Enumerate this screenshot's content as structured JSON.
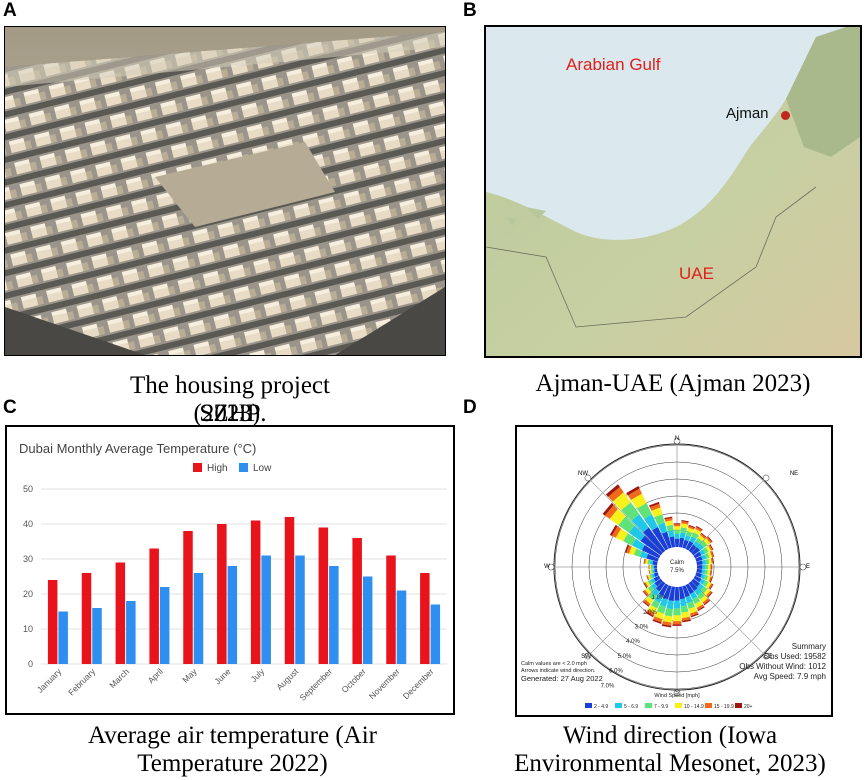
{
  "panels": {
    "a": {
      "letter": "A",
      "caption_line1": "The housing project SZHP",
      "caption_line2": "(2023)."
    },
    "b": {
      "letter": "B",
      "caption": "Ajman-UAE (Ajman 2023)",
      "map_labels": {
        "gulf": "Arabian Gulf",
        "city": "Ajman",
        "country": "UAE"
      }
    },
    "c": {
      "letter": "C",
      "caption_line1": "Average air temperature (Air",
      "caption_line2": "Temperature 2022)"
    },
    "d": {
      "letter": "D",
      "caption_line1": "Wind direction (Iowa",
      "caption_line2": "Environmental Mesonet, 2023)"
    }
  },
  "colors": {
    "high": "#e8131b",
    "low": "#2e8ff0",
    "gulf_label": "#e0201a",
    "city_dot": "#c0281c"
  },
  "chart_data": {
    "type": "bar",
    "title": "Dubai Monthly Average Temperature (°C)",
    "categories": [
      "January",
      "February",
      "March",
      "April",
      "May",
      "June",
      "July",
      "August",
      "September",
      "October",
      "November",
      "December"
    ],
    "series": [
      {
        "name": "High",
        "values": [
          24,
          26,
          29,
          33,
          38,
          40,
          41,
          42,
          39,
          36,
          31,
          26
        ]
      },
      {
        "name": "Low",
        "values": [
          15,
          16,
          18,
          22,
          26,
          28,
          31,
          31,
          28,
          25,
          21,
          17
        ]
      }
    ],
    "yticks": [
      0,
      10,
      20,
      30,
      40,
      50
    ],
    "ylim": [
      0,
      50
    ],
    "xlabel": "",
    "ylabel": "",
    "legend": "top-center"
  },
  "windrose": {
    "directions": {
      "n": "N",
      "ne": "NE",
      "e": "E",
      "se": "SE",
      "s": "S",
      "sw": "SW",
      "w": "W",
      "nw": "NW"
    },
    "calm_label": "Calm",
    "calm_value": "7.5%",
    "ring_labels": [
      "1.0%",
      "2.0%",
      "3.0%",
      "4.0%",
      "5.0%",
      "6.0%",
      "7.0%"
    ],
    "notes": [
      "Calm values are < 2.0 mph",
      "Arrows indicate wind direction.",
      "Generated: 27 Aug 2022"
    ],
    "summary": {
      "title": "Summary",
      "obs_used": "Obs Used: 19582",
      "obs_without_wind": "Obs Without Wind: 1012",
      "avg_speed": "Avg Speed: 7.9 mph"
    },
    "legend_title": "Wind Speed [mph]",
    "legend_items": [
      {
        "label": "2 - 4.9",
        "color": "#1a3fd6"
      },
      {
        "label": "5 - 6.9",
        "color": "#21c7e8"
      },
      {
        "label": "7 - 9.9",
        "color": "#5fe27a"
      },
      {
        "label": "10 - 14.9",
        "color": "#f7f21c"
      },
      {
        "label": "15 - 19.9",
        "color": "#f06a1a"
      },
      {
        "label": "20+",
        "color": "#a0150f"
      }
    ]
  }
}
